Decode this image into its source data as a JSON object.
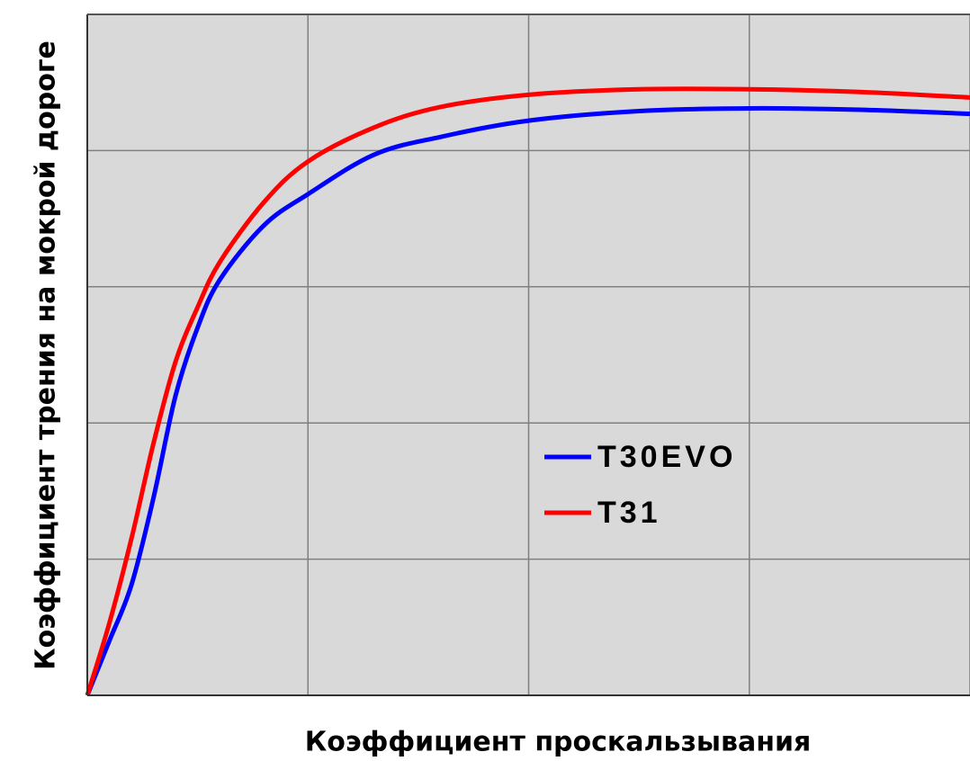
{
  "chart_data": {
    "type": "line",
    "xlabel": "Коэффициент проскальзывания",
    "ylabel": "Коэффициент трения на мокрой  дороге",
    "x": [
      0,
      0.1,
      0.2,
      0.3,
      0.4,
      0.5,
      0.6,
      0.8,
      1.0,
      1.3,
      1.6,
      2.0,
      2.5,
      3.0,
      3.5,
      4.0
    ],
    "series": [
      {
        "name": "T30EVO",
        "color": "#0000ff",
        "values": [
          0,
          0.4,
          0.81,
          1.45,
          2.2,
          2.7,
          3.05,
          3.45,
          3.68,
          3.97,
          4.1,
          4.22,
          4.29,
          4.31,
          4.3,
          4.27
        ]
      },
      {
        "name": "T31",
        "color": "#ff0000",
        "values": [
          0,
          0.53,
          1.15,
          1.85,
          2.45,
          2.85,
          3.18,
          3.62,
          3.92,
          4.17,
          4.32,
          4.41,
          4.45,
          4.45,
          4.43,
          4.39
        ]
      }
    ],
    "xlim": [
      0,
      4
    ],
    "ylim": [
      0,
      5
    ],
    "xticks": [
      0,
      1,
      2,
      3,
      4
    ],
    "yticks": [
      0,
      1,
      2,
      3,
      4,
      5
    ],
    "grid": true
  }
}
